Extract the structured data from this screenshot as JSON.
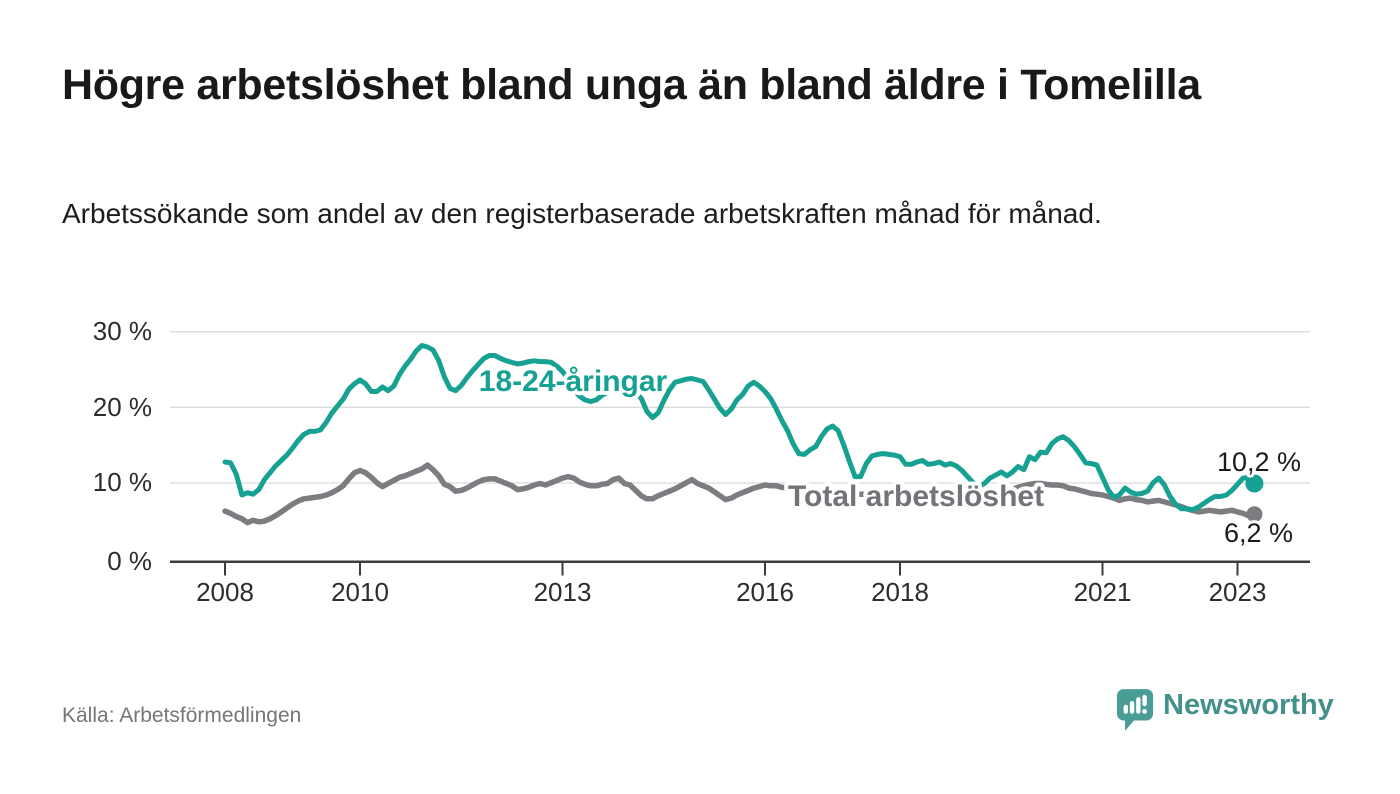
{
  "title": "Högre arbetslöshet bland unga än bland äldre i Tomelilla",
  "subtitle": "Arbetssökande som andel av den registerbaserade arbetskraften månad för månad.",
  "source": "Källa: Arbetsförmedlingen",
  "branding": {
    "name": "Newsworthy",
    "icon": "bar-chart-speech-bubble-icon"
  },
  "colors": {
    "youth_line": "#16a192",
    "total_line": "#7c7c81",
    "total_label_text": "#73737a",
    "grid": "#dbdbdb",
    "axis": "#3c3c3c",
    "title_text": "#191919",
    "muted_text": "#76767a",
    "brand_teal": "#44918b"
  },
  "chart_data": {
    "type": "line",
    "unit": "%",
    "x_frequency": "monthly",
    "x_start": "2008-01",
    "x_end": "2023-04",
    "ylim": [
      0,
      30
    ],
    "grid": true,
    "legend_position": "inline-labels",
    "y_ticks": [
      {
        "label": "30 %",
        "value": 30
      },
      {
        "label": "20 %",
        "value": 20
      },
      {
        "label": "10 %",
        "value": 10
      },
      {
        "label": "0 %",
        "value": 0
      }
    ],
    "x_ticks": [
      {
        "label": "2008",
        "year": 2008
      },
      {
        "label": "2010",
        "year": 2010
      },
      {
        "label": "2013",
        "year": 2013
      },
      {
        "label": "2016",
        "year": 2016
      },
      {
        "label": "2018",
        "year": 2018
      },
      {
        "label": "2021",
        "year": 2021
      },
      {
        "label": "2023",
        "year": 2023
      }
    ],
    "series": [
      {
        "id": "youth",
        "name": "18-24-åringar",
        "color": "#16a192",
        "end_label": "10,2 %",
        "end_value": 10.2,
        "values": [
          13.0,
          12.9,
          11.4,
          8.7,
          9.0,
          8.8,
          9.4,
          10.7,
          11.6,
          12.5,
          13.2,
          13.9,
          14.8,
          15.8,
          16.6,
          17.0,
          17.0,
          17.2,
          18.2,
          19.4,
          20.3,
          21.2,
          22.5,
          23.2,
          23.7,
          23.2,
          22.2,
          22.2,
          22.8,
          22.3,
          22.9,
          24.4,
          25.5,
          26.4,
          27.5,
          28.2,
          28.0,
          27.6,
          26.2,
          24.1,
          22.6,
          22.3,
          23.0,
          24.0,
          24.9,
          25.7,
          26.5,
          26.9,
          26.9,
          26.5,
          26.2,
          26.0,
          25.8,
          25.9,
          26.1,
          26.2,
          26.1,
          26.1,
          26.0,
          25.5,
          24.8,
          23.9,
          22.5,
          21.6,
          21.1,
          20.9,
          21.1,
          21.7,
          22.1,
          22.3,
          22.4,
          22.7,
          22.6,
          22.0,
          21.3,
          19.6,
          18.8,
          19.4,
          21.0,
          22.4,
          23.4,
          23.6,
          23.8,
          23.9,
          23.7,
          23.5,
          22.4,
          21.2,
          20.0,
          19.2,
          19.9,
          21.1,
          21.8,
          22.9,
          23.4,
          22.9,
          22.2,
          21.3,
          19.9,
          18.4,
          17.1,
          15.4,
          14.1,
          14.0,
          14.6,
          15.0,
          16.3,
          17.3,
          17.7,
          17.1,
          15.2,
          13.1,
          11.1,
          11.1,
          12.8,
          13.8,
          14.0,
          14.1,
          14.0,
          13.9,
          13.7,
          12.7,
          12.7,
          13.0,
          13.2,
          12.7,
          12.8,
          13.0,
          12.6,
          12.8,
          12.5,
          11.9,
          11.1,
          10.3,
          9.8,
          10.2,
          10.9,
          11.3,
          11.7,
          11.2,
          11.7,
          12.4,
          12.0,
          13.7,
          13.3,
          14.3,
          14.2,
          15.4,
          16.0,
          16.3,
          15.8,
          15.0,
          14.0,
          12.9,
          12.8,
          12.6,
          11.0,
          9.4,
          8.4,
          8.7,
          9.6,
          9.1,
          8.8,
          8.9,
          9.2,
          10.3,
          10.9,
          10.0,
          8.5,
          7.5,
          6.9,
          6.9,
          6.8,
          7.1,
          7.6,
          8.1,
          8.5,
          8.5,
          8.7,
          9.3,
          10.1,
          10.9,
          11.0,
          10.2
        ]
      },
      {
        "id": "total",
        "name": "Total arbetslöshet",
        "color": "#7c7c81",
        "end_label": "6,2 %",
        "end_value": 6.2,
        "values": [
          6.6,
          6.3,
          5.9,
          5.6,
          5.1,
          5.4,
          5.2,
          5.3,
          5.6,
          6.0,
          6.5,
          7.0,
          7.5,
          7.9,
          8.2,
          8.3,
          8.4,
          8.5,
          8.7,
          9.0,
          9.4,
          9.9,
          10.8,
          11.6,
          11.9,
          11.6,
          11.0,
          10.3,
          9.8,
          10.2,
          10.6,
          11.0,
          11.2,
          11.5,
          11.8,
          12.1,
          12.6,
          12.0,
          11.2,
          10.1,
          9.8,
          9.2,
          9.3,
          9.6,
          10.0,
          10.4,
          10.7,
          10.8,
          10.8,
          10.5,
          10.2,
          9.9,
          9.4,
          9.5,
          9.7,
          10.0,
          10.2,
          10.0,
          10.3,
          10.6,
          10.9,
          11.1,
          10.9,
          10.4,
          10.1,
          9.9,
          9.9,
          10.1,
          10.2,
          10.7,
          10.9,
          10.2,
          10.0,
          9.3,
          8.6,
          8.2,
          8.2,
          8.6,
          8.9,
          9.2,
          9.5,
          9.9,
          10.3,
          10.7,
          10.2,
          9.9,
          9.6,
          9.1,
          8.6,
          8.1,
          8.3,
          8.7,
          9.0,
          9.3,
          9.6,
          9.8,
          10.0,
          9.9,
          9.9,
          9.7,
          9.6,
          9.4,
          9.4,
          9.2,
          9.1,
          9.1,
          9.0,
          8.9,
          8.8,
          8.8,
          8.7,
          8.7,
          8.7,
          8.8,
          8.8,
          8.9,
          9.0,
          9.0,
          9.1,
          9.1,
          9.0,
          9.0,
          8.9,
          8.8,
          8.7,
          8.7,
          8.7,
          8.6,
          8.6,
          8.5,
          8.5,
          8.5,
          8.4,
          8.4,
          8.5,
          8.5,
          8.6,
          8.7,
          8.9,
          9.1,
          9.4,
          9.7,
          9.9,
          10.1,
          10.2,
          10.2,
          10.1,
          10.0,
          10.0,
          9.9,
          9.6,
          9.5,
          9.3,
          9.1,
          8.9,
          8.8,
          8.7,
          8.5,
          8.3,
          8.0,
          8.2,
          8.3,
          8.1,
          8.0,
          7.8,
          7.9,
          8.0,
          7.8,
          7.6,
          7.4,
          7.2,
          6.9,
          6.7,
          6.5,
          6.6,
          6.7,
          6.6,
          6.5,
          6.6,
          6.7,
          6.5,
          6.3,
          6.0,
          6.2
        ]
      }
    ]
  }
}
